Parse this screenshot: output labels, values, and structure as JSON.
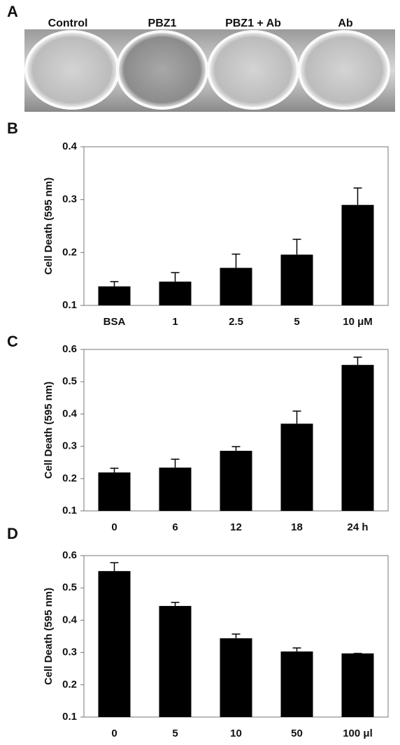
{
  "panel_a": {
    "panel_label": "A",
    "wells": [
      "Control",
      "PBZ1",
      "PBZ1 + Ab",
      "Ab"
    ]
  },
  "chart_data": [
    {
      "type": "bar",
      "panel_label": "B",
      "y_label": "Cell Death (595 nm)",
      "categories": [
        "BSA",
        "1",
        "2.5",
        "5",
        "10 μM"
      ],
      "series": [
        {
          "values": [
            0.136,
            0.145,
            0.171,
            0.196,
            0.29
          ],
          "errors": [
            0.009,
            0.017,
            0.026,
            0.029,
            0.032
          ],
          "color": "#000000"
        }
      ],
      "ylim": [
        0.1,
        0.4
      ],
      "yticks": [
        0.1,
        0.2,
        0.3,
        0.4
      ]
    },
    {
      "type": "bar",
      "panel_label": "C",
      "y_label": "Cell Death (595 nm)",
      "categories": [
        "0",
        "6",
        "12",
        "18",
        "24 h"
      ],
      "series": [
        {
          "values": [
            0.219,
            0.234,
            0.286,
            0.37,
            0.552
          ],
          "errors": [
            0.013,
            0.026,
            0.013,
            0.039,
            0.024
          ],
          "color": "#000000"
        }
      ],
      "ylim": [
        0.1,
        0.6
      ],
      "yticks": [
        0.1,
        0.2,
        0.3,
        0.4,
        0.5,
        0.6
      ]
    },
    {
      "type": "bar",
      "panel_label": "D",
      "y_label": "Cell Death (595 nm)",
      "categories": [
        "0",
        "5",
        "10",
        "50",
        "100 μl"
      ],
      "series": [
        {
          "values": [
            0.552,
            0.444,
            0.344,
            0.303,
            0.297
          ],
          "errors": [
            0.026,
            0.011,
            0.013,
            0.011,
            0
          ],
          "color": "#000000"
        }
      ],
      "ylim": [
        0.1,
        0.6
      ],
      "yticks": [
        0.1,
        0.2,
        0.3,
        0.4,
        0.5,
        0.6
      ]
    }
  ]
}
